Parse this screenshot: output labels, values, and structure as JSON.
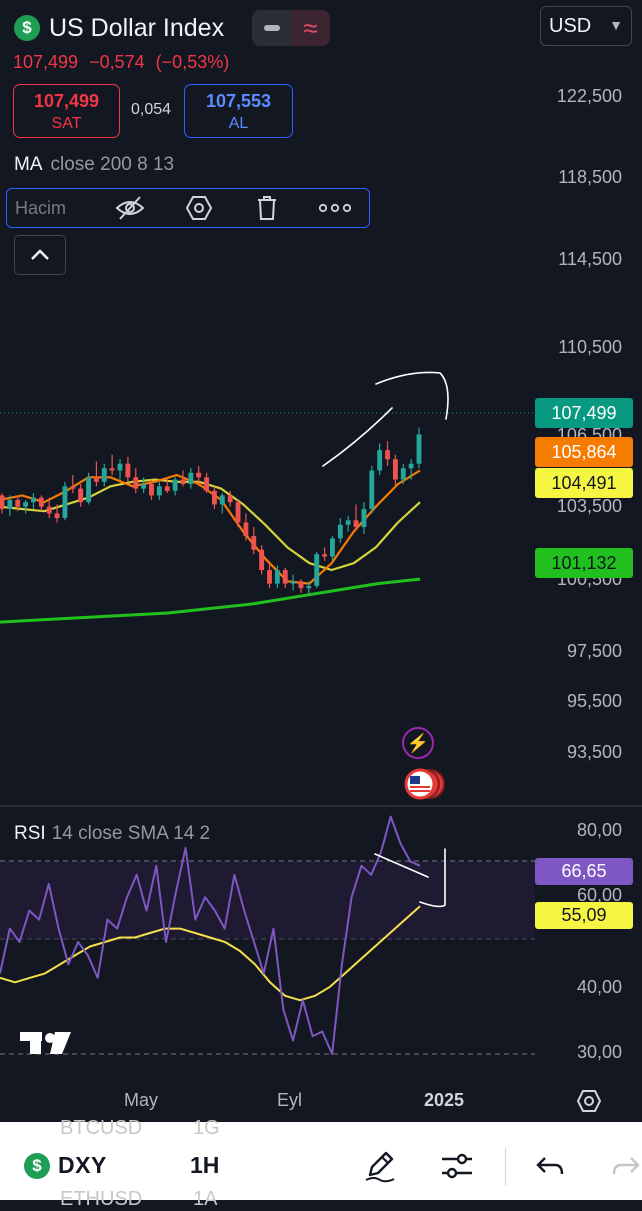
{
  "header": {
    "symbol_name": "US Dollar Index",
    "icon": "dollar-icon",
    "currency": "USD",
    "last_price": "107,499",
    "change": "−0,574",
    "change_percent": "(−0,53%)"
  },
  "trade": {
    "sell_price": "107,499",
    "sell_label": "SAT",
    "spread": "0,054",
    "buy_price": "107,553",
    "buy_label": "AL"
  },
  "ma_legend": {
    "name": "MA",
    "params": "close 200 8 13"
  },
  "volume_toolbar": {
    "label": "Hacim",
    "icons": [
      "eye-crossed-icon",
      "settings-hexagon-icon",
      "trash-icon",
      "more-icon"
    ]
  },
  "price_axis": [
    "122,500",
    "118,500",
    "114,500",
    "110,500",
    "106,500",
    "103,500",
    "100,500",
    "97,500",
    "95,500",
    "93,500"
  ],
  "price_badges": {
    "last": "107,499",
    "ma_orange": "105,864",
    "ma_yellow": "104,491",
    "ma_green": "101,132"
  },
  "rsi_legend": {
    "name": "RSI",
    "params": "14 close SMA 14 2"
  },
  "rsi_axis": [
    "80,00",
    "60,00",
    "40,00",
    "30,00"
  ],
  "rsi_badges": {
    "rsi": "66,65",
    "sma": "55,09"
  },
  "time_axis": [
    "May",
    "Eyl",
    "2025"
  ],
  "bottom_bar": {
    "symbol": "DXY",
    "interval": "1H",
    "ghost_above": [
      "BTCUSD",
      "1G"
    ],
    "ghost_below": [
      "ETHUSD",
      "1A"
    ]
  },
  "colors": {
    "background": "#131722",
    "up": "#26a69a",
    "down": "#ef5350",
    "ma_orange": "#f57c00",
    "ma_yellow": "#d4d43a",
    "ma_green": "#22c01e",
    "rsi": "#7e57c2",
    "rsi_sma": "#f5e04a",
    "last_price": "#089981"
  },
  "chart_data": {
    "type": "candlestick",
    "ylim": [
      92.5,
      124
    ],
    "candles_ohlc": [
      [
        104.8,
        104.9,
        104.0,
        104.2
      ],
      [
        104.2,
        104.8,
        103.9,
        104.6
      ],
      [
        104.6,
        104.8,
        104.1,
        104.3
      ],
      [
        104.3,
        104.6,
        104.0,
        104.5
      ],
      [
        104.5,
        104.9,
        104.2,
        104.7
      ],
      [
        104.7,
        104.8,
        104.1,
        104.3
      ],
      [
        104.3,
        104.7,
        103.8,
        104.0
      ],
      [
        104.0,
        104.4,
        103.6,
        103.8
      ],
      [
        103.8,
        105.4,
        103.7,
        105.2
      ],
      [
        105.2,
        105.7,
        104.9,
        105.1
      ],
      [
        105.1,
        105.3,
        104.3,
        104.5
      ],
      [
        104.5,
        105.8,
        104.4,
        105.6
      ],
      [
        105.6,
        106.3,
        105.2,
        105.4
      ],
      [
        105.4,
        106.2,
        105.2,
        106.0
      ],
      [
        106.0,
        106.6,
        105.7,
        105.9
      ],
      [
        105.9,
        106.4,
        105.5,
        106.2
      ],
      [
        106.2,
        106.5,
        105.4,
        105.6
      ],
      [
        105.6,
        106.0,
        104.9,
        105.1
      ],
      [
        105.1,
        105.6,
        104.9,
        105.3
      ],
      [
        105.3,
        105.5,
        104.6,
        104.8
      ],
      [
        104.8,
        105.4,
        104.6,
        105.2
      ],
      [
        105.2,
        105.6,
        104.9,
        105.0
      ],
      [
        105.0,
        105.6,
        104.8,
        105.5
      ],
      [
        105.5,
        105.9,
        105.2,
        105.3
      ],
      [
        105.3,
        106.0,
        105.1,
        105.8
      ],
      [
        105.8,
        106.1,
        105.2,
        105.6
      ],
      [
        105.6,
        105.8,
        104.9,
        105.0
      ],
      [
        105.0,
        105.2,
        104.2,
        104.4
      ],
      [
        104.4,
        104.9,
        104.0,
        104.8
      ],
      [
        104.8,
        105.0,
        104.3,
        104.5
      ],
      [
        104.5,
        104.6,
        103.4,
        103.6
      ],
      [
        103.6,
        104.0,
        102.8,
        103.0
      ],
      [
        103.0,
        103.4,
        102.2,
        102.4
      ],
      [
        102.4,
        102.6,
        101.3,
        101.5
      ],
      [
        101.5,
        101.9,
        100.7,
        100.9
      ],
      [
        100.9,
        101.7,
        100.7,
        101.5
      ],
      [
        101.5,
        101.6,
        100.7,
        100.9
      ],
      [
        100.9,
        101.3,
        100.6,
        101.0
      ],
      [
        101.0,
        101.1,
        100.5,
        100.7
      ],
      [
        100.7,
        101.0,
        100.4,
        100.8
      ],
      [
        100.8,
        102.3,
        100.7,
        102.2
      ],
      [
        102.2,
        102.5,
        101.9,
        102.1
      ],
      [
        102.1,
        103.0,
        101.9,
        102.9
      ],
      [
        102.9,
        103.8,
        102.7,
        103.5
      ],
      [
        103.5,
        103.9,
        103.2,
        103.7
      ],
      [
        103.7,
        104.4,
        103.3,
        103.4
      ],
      [
        103.4,
        104.5,
        103.1,
        104.2
      ],
      [
        104.2,
        106.1,
        104.0,
        105.9
      ],
      [
        105.9,
        107.1,
        105.7,
        106.8
      ],
      [
        106.8,
        107.2,
        106.1,
        106.4
      ],
      [
        106.4,
        106.6,
        105.2,
        105.5
      ],
      [
        105.5,
        106.2,
        105.3,
        106.0
      ],
      [
        106.0,
        106.4,
        105.5,
        106.2
      ],
      [
        106.2,
        107.8,
        106.0,
        107.5
      ]
    ],
    "ma_200": [
      99.2,
      99.3,
      99.4,
      99.5,
      99.6,
      99.8,
      100.0,
      100.3,
      100.6,
      100.9,
      101.1
    ],
    "ma_8": [
      104.6,
      104.8,
      104.5,
      105.0,
      105.6,
      105.6,
      105.2,
      105.4,
      105.7,
      105.3,
      104.6,
      103.2,
      102.0,
      101.0,
      100.9,
      101.8,
      103.2,
      104.3,
      105.3,
      105.9
    ],
    "ma_13": [
      104.3,
      104.2,
      104.1,
      104.4,
      104.7,
      105.2,
      105.4,
      105.5,
      105.4,
      105.4,
      105.1,
      104.4,
      103.5,
      102.5,
      101.8,
      101.5,
      101.8,
      102.5,
      103.6,
      104.5
    ],
    "rsi": [
      48,
      58,
      55,
      62,
      60,
      68,
      58,
      50,
      55,
      52,
      47,
      60,
      58,
      65,
      70,
      62,
      72,
      55,
      66,
      76,
      60,
      65,
      62,
      58,
      70,
      62,
      55,
      48,
      58,
      40,
      33,
      42,
      34,
      35,
      30,
      50,
      65,
      72,
      70,
      75,
      83,
      77,
      73,
      72
    ],
    "rsi_sma": [
      47,
      46,
      47,
      48,
      50,
      52,
      54,
      55,
      56,
      56,
      57,
      58,
      58,
      57,
      56,
      55,
      53,
      50,
      46,
      43,
      42,
      43,
      45,
      48,
      51,
      54,
      57,
      60,
      63
    ],
    "rsi_ylim": [
      25,
      85
    ]
  }
}
